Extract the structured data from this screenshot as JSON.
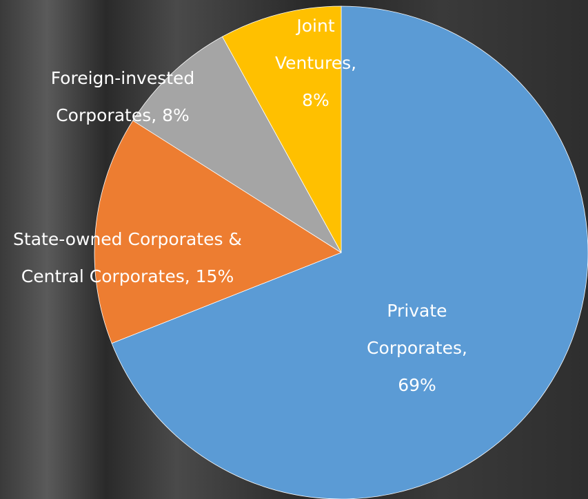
{
  "chart_data": {
    "type": "pie",
    "values": [
      69,
      15,
      8,
      8
    ],
    "value_labels": [
      "Private Corporates, 69%",
      "State-owned Corporates & Central Corporates, 15%",
      "Foreign-invested Corporates, 8%",
      "Joint Ventures, 8%"
    ],
    "colors": [
      "#5b9bd5",
      "#ed7d31",
      "#a5a5a5",
      "#ffc000"
    ]
  }
}
